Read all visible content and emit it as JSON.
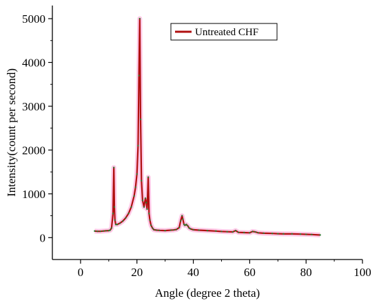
{
  "chart_data": {
    "type": "line",
    "title": "",
    "xlabel": "Angle (degree 2 theta)",
    "ylabel": "Intensity(count per second)",
    "xlim": [
      -10,
      100
    ],
    "ylim": [
      -500,
      5300
    ],
    "xticks": [
      0,
      20,
      40,
      60,
      80,
      100
    ],
    "yticks": [
      0,
      1000,
      2000,
      3000,
      4000,
      5000
    ],
    "grid": false,
    "legend": {
      "placement": "top-right"
    },
    "series": [
      {
        "name": "Untreated CHF",
        "line_color": "#b01010",
        "marker_color": "#2e7d32",
        "glow_color": "#ff9bd1",
        "x": [
          5,
          6,
          7,
          8,
          9,
          10,
          10.5,
          11,
          11.5,
          11.8,
          12.0,
          12.2,
          12.5,
          13,
          14,
          15,
          16,
          17,
          18,
          19,
          19.5,
          20,
          20.4,
          20.7,
          21.0,
          21.3,
          21.6,
          22,
          22.5,
          23,
          23.3,
          23.6,
          24,
          24.3,
          24.6,
          25,
          25.5,
          26,
          27,
          28,
          30,
          32,
          33,
          34,
          35,
          35.5,
          36,
          36.3,
          36.7,
          37,
          37.5,
          38,
          38.5,
          39,
          40,
          42,
          45,
          48,
          50,
          52,
          54,
          55,
          56,
          58,
          60,
          61,
          62,
          63,
          65,
          68,
          70,
          72,
          75,
          78,
          80,
          82,
          85
        ],
        "y": [
          150,
          145,
          145,
          150,
          155,
          160,
          170,
          220,
          550,
          1600,
          700,
          400,
          300,
          300,
          330,
          380,
          450,
          550,
          700,
          950,
          1150,
          1450,
          2100,
          3700,
          5000,
          2700,
          1300,
          850,
          700,
          900,
          800,
          650,
          1380,
          550,
          400,
          280,
          220,
          180,
          170,
          165,
          160,
          170,
          175,
          185,
          230,
          380,
          500,
          420,
          300,
          280,
          300,
          270,
          220,
          200,
          180,
          170,
          160,
          150,
          140,
          135,
          130,
          160,
          120,
          115,
          110,
          140,
          130,
          110,
          100,
          95,
          90,
          85,
          85,
          80,
          75,
          70,
          60
        ]
      }
    ]
  }
}
